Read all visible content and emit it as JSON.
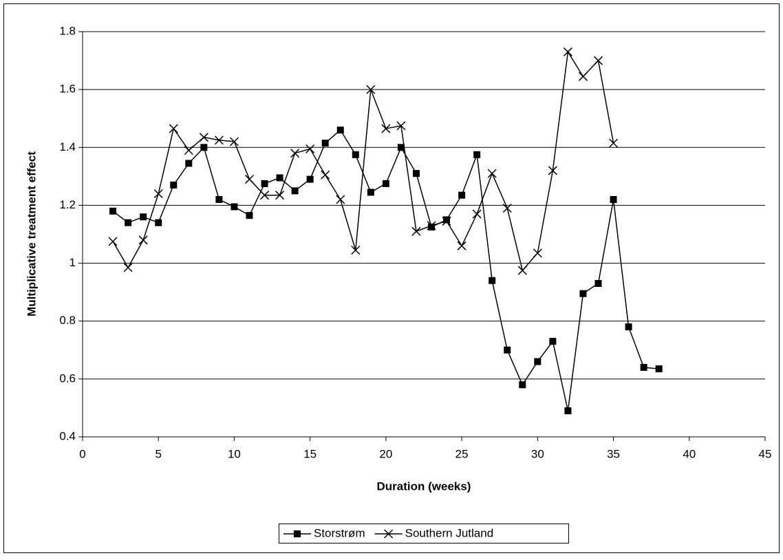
{
  "chart_data": {
    "type": "line",
    "xlabel": "Duration (weeks)",
    "ylabel": "Multiplicative treatment effect",
    "xlim": [
      0,
      45
    ],
    "xticks": [
      0,
      5,
      10,
      15,
      20,
      25,
      30,
      35,
      40,
      45
    ],
    "ylim": [
      0.4,
      1.8
    ],
    "yticks": [
      0.4,
      0.6,
      0.8,
      1,
      1.2,
      1.4,
      1.6,
      1.8
    ],
    "grid": true,
    "legend": "bottom",
    "series": [
      {
        "name": "Storstrøm",
        "color": "#000000",
        "marker": "square",
        "x": [
          2,
          3,
          4,
          5,
          6,
          7,
          8,
          9,
          10,
          11,
          12,
          13,
          14,
          15,
          16,
          17,
          18,
          19,
          20,
          21,
          22,
          23,
          24,
          25,
          26,
          27,
          28,
          29,
          30,
          31,
          32,
          33,
          34,
          35,
          36,
          37,
          38
        ],
        "values": [
          1.18,
          1.14,
          1.16,
          1.14,
          1.27,
          1.345,
          1.4,
          1.22,
          1.195,
          1.165,
          1.275,
          1.295,
          1.25,
          1.29,
          1.415,
          1.46,
          1.375,
          1.245,
          1.275,
          1.4,
          1.31,
          1.125,
          1.15,
          1.235,
          1.375,
          0.94,
          0.7,
          0.58,
          0.66,
          0.73,
          0.49,
          0.895,
          0.93,
          1.22,
          0.78,
          0.64,
          0.635
        ]
      },
      {
        "name": "Southern Jutland",
        "color": "#000000",
        "marker": "x",
        "x": [
          2,
          3,
          4,
          5,
          6,
          7,
          8,
          9,
          10,
          11,
          12,
          13,
          14,
          15,
          16,
          17,
          18,
          19,
          20,
          21,
          22,
          23,
          24,
          25,
          26,
          27,
          28,
          29,
          30,
          31,
          32,
          33,
          34,
          35
        ],
        "values": [
          1.075,
          0.985,
          1.08,
          1.24,
          1.465,
          1.39,
          1.435,
          1.425,
          1.42,
          1.29,
          1.235,
          1.235,
          1.38,
          1.395,
          1.305,
          1.22,
          1.045,
          1.6,
          1.465,
          1.475,
          1.11,
          1.13,
          1.145,
          1.06,
          1.17,
          1.31,
          1.19,
          0.975,
          1.035,
          1.32,
          1.73,
          1.645,
          1.7,
          1.415
        ]
      }
    ]
  }
}
